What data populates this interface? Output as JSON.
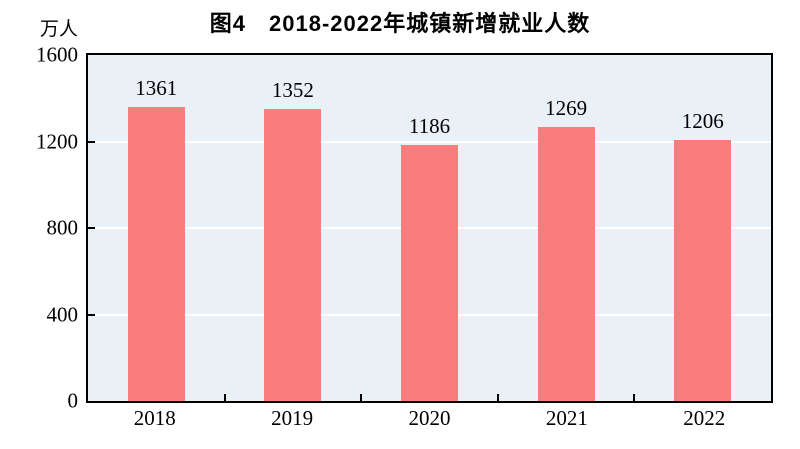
{
  "figure": {
    "title": "图4　2018-2022年城镇新增就业人数",
    "y_axis_unit": "万人"
  },
  "chart_data": {
    "type": "bar",
    "title": "图4　2018-2022年城镇新增就业人数",
    "categories": [
      "2018",
      "2019",
      "2020",
      "2021",
      "2022"
    ],
    "values": [
      1361,
      1352,
      1186,
      1269,
      1206
    ],
    "data_labels": [
      "1361",
      "1352",
      "1186",
      "1269",
      "1206"
    ],
    "xlabel": "",
    "ylabel": "万人",
    "ylim": [
      0,
      1600
    ],
    "yticks": [
      0,
      400,
      800,
      1200,
      1600
    ],
    "grid": "horizontal",
    "legend_position": "none",
    "colors": {
      "bar": "#FB7C7C",
      "plot_background": "#EAF1F6",
      "gridline": "#FFFFFF",
      "axis": "#000000",
      "text": "#000000",
      "page_background": "#FFFFFF"
    }
  }
}
